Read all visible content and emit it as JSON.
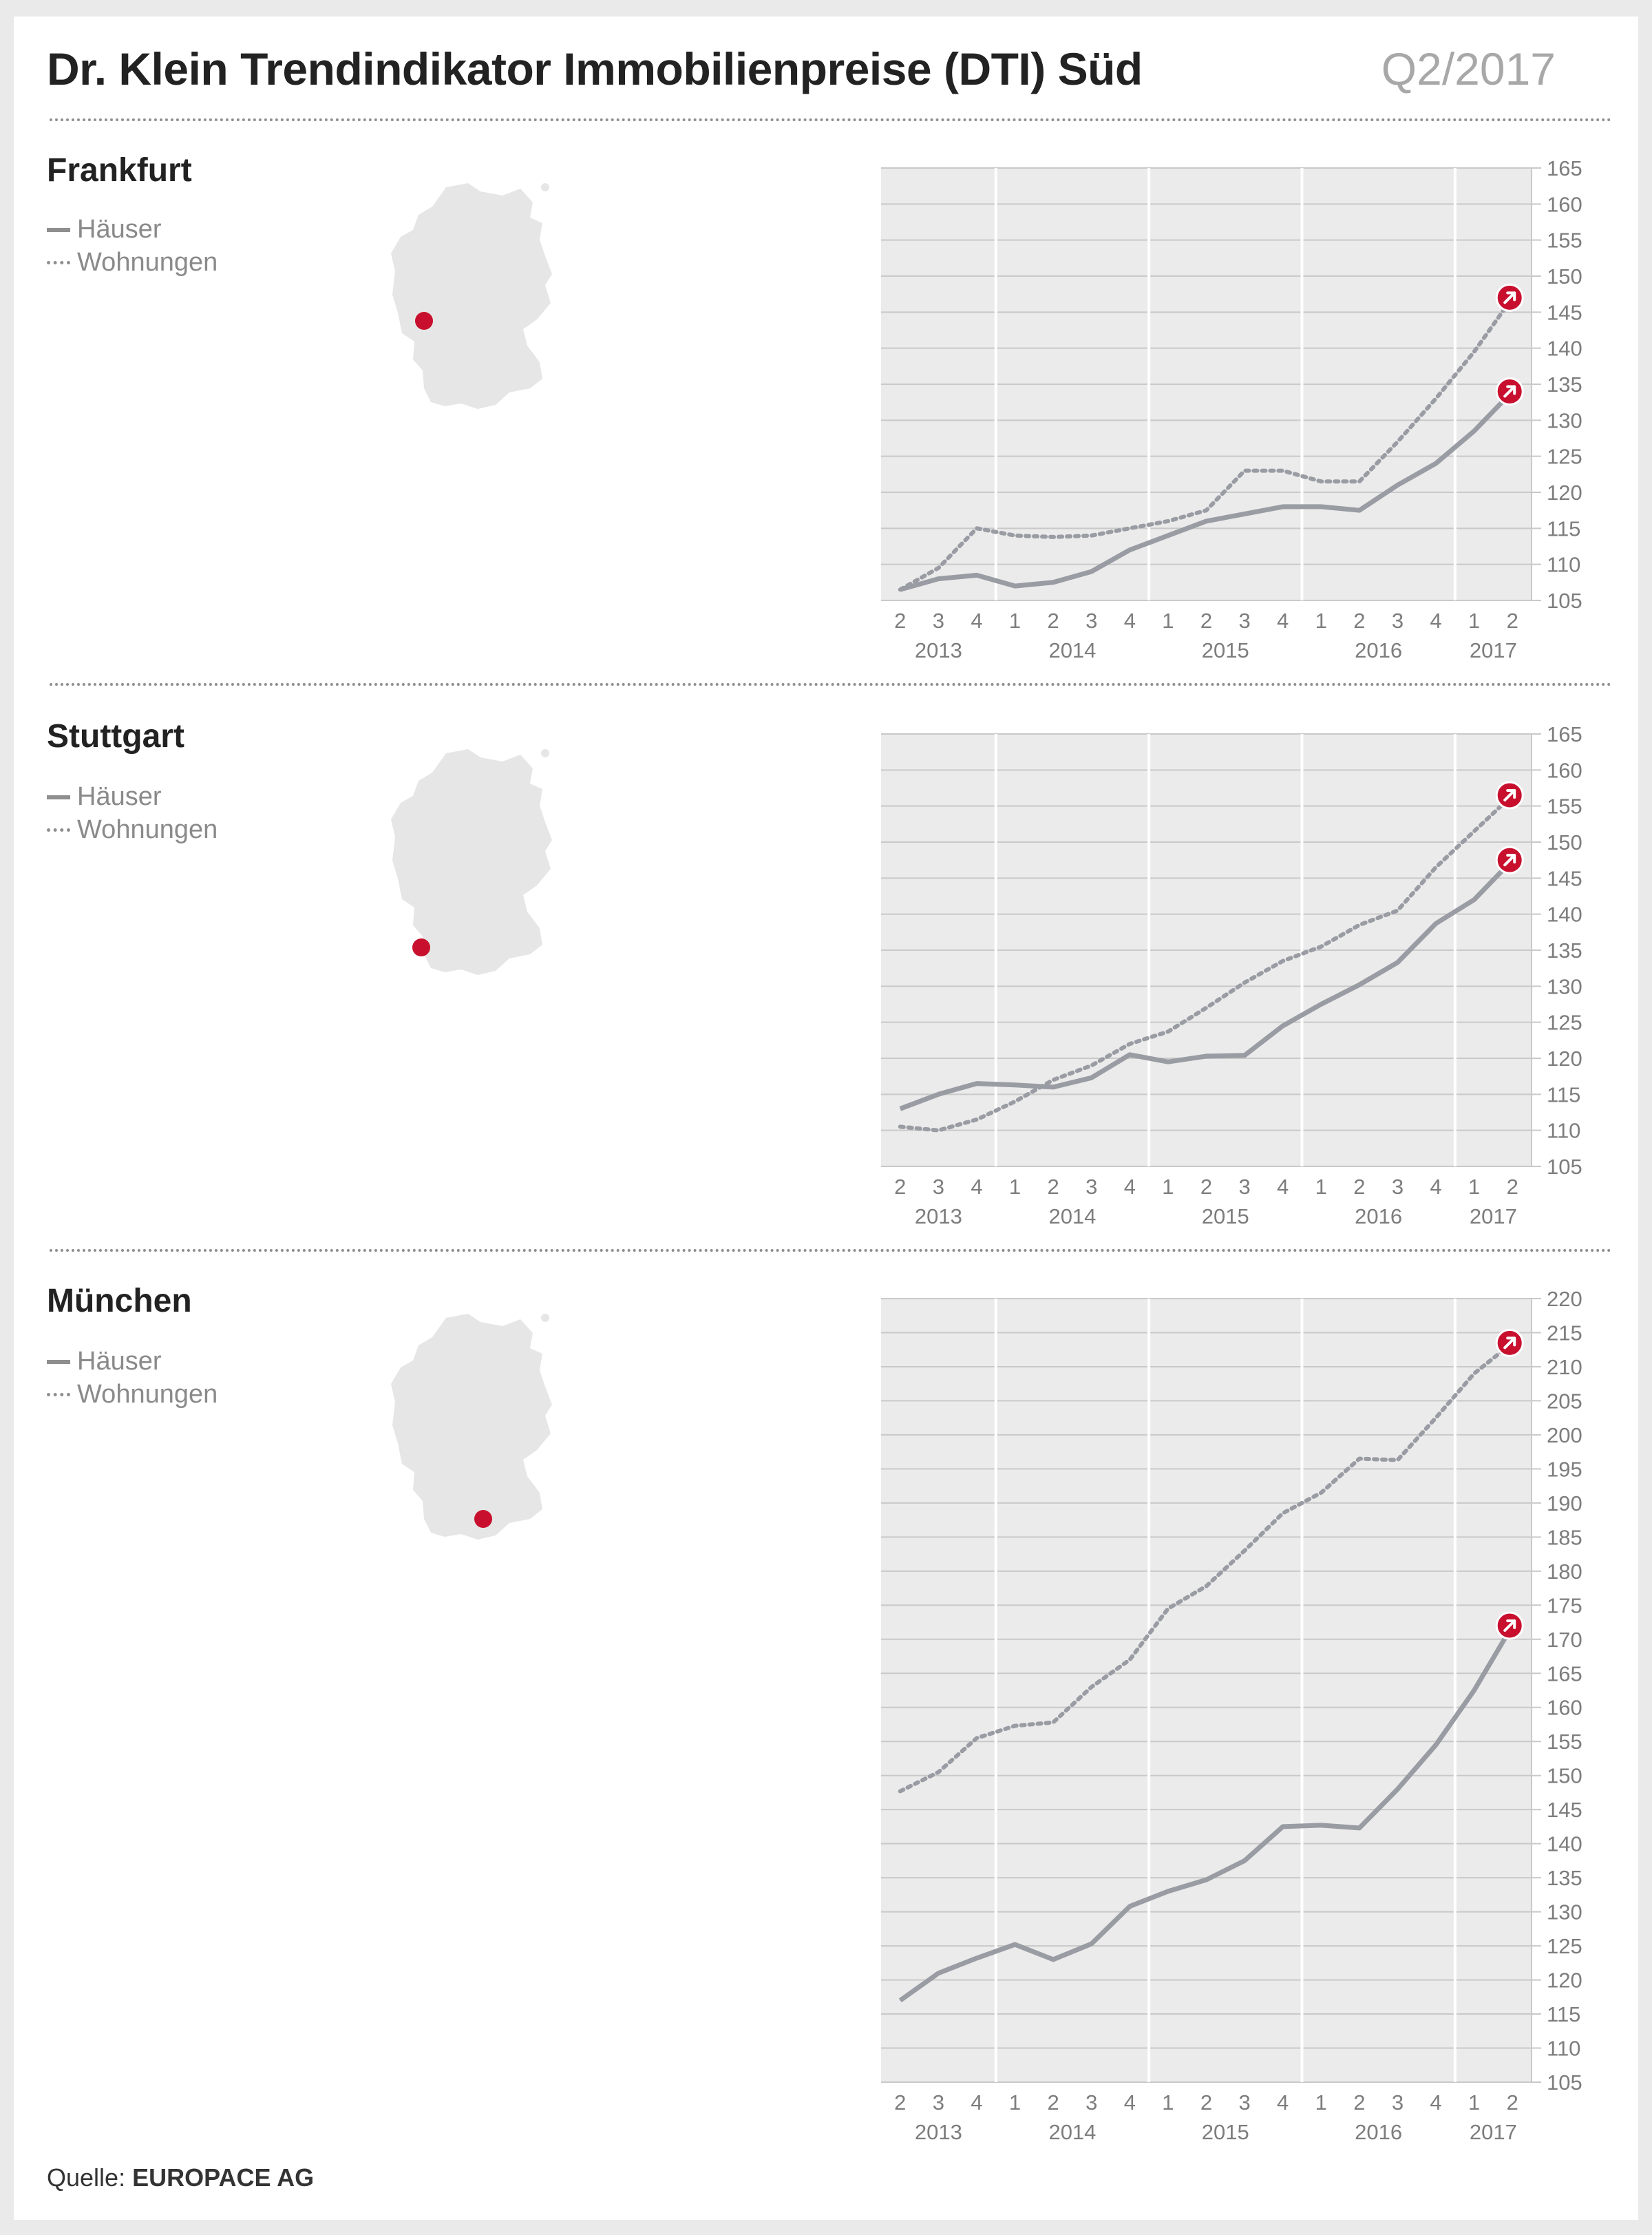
{
  "header": {
    "title": "Dr. Klein Trendindikator Immobilienpreise (DTI) Süd",
    "period": "Q2/2017"
  },
  "legend": {
    "houses": "Häuser",
    "apartments": "Wohnungen"
  },
  "source": {
    "label": "Quelle:",
    "name": "EUROPACE AG"
  },
  "colors": {
    "line": "#9a9ca4",
    "plot_bg": "#ebebeb",
    "marker": "#c8102e",
    "grid": "#ffffff"
  },
  "icons": {
    "map": "germany-map-icon",
    "arrow": "arrow-up-right-icon"
  },
  "chart_data": [
    {
      "type": "line",
      "title": "Frankfurt",
      "quarters": [
        "2",
        "3",
        "4",
        "1",
        "2",
        "3",
        "4",
        "1",
        "2",
        "3",
        "4",
        "1",
        "2",
        "3",
        "4",
        "1",
        "2"
      ],
      "years": [
        {
          "label": "2013",
          "from": 0,
          "to": 2
        },
        {
          "label": "2014",
          "from": 3,
          "to": 6
        },
        {
          "label": "2015",
          "from": 7,
          "to": 10
        },
        {
          "label": "2016",
          "from": 11,
          "to": 14
        },
        {
          "label": "2017",
          "from": 15,
          "to": 16
        }
      ],
      "ylim": [
        105,
        165
      ],
      "ytick_step": 5,
      "grid": true,
      "series": [
        {
          "name": "Häuser",
          "style": "solid",
          "values": [
            106.5,
            108,
            108.5,
            107,
            107.5,
            109,
            112,
            114,
            116,
            117,
            118,
            118,
            117.5,
            121,
            124,
            128.5,
            134
          ]
        },
        {
          "name": "Wohnungen",
          "style": "dotted",
          "values": [
            106.5,
            109.5,
            115,
            114,
            113.8,
            114,
            115,
            116,
            117.5,
            123,
            123,
            121.5,
            121.5,
            127,
            133,
            139.5,
            147
          ]
        }
      ]
    },
    {
      "type": "line",
      "title": "Stuttgart",
      "quarters": [
        "2",
        "3",
        "4",
        "1",
        "2",
        "3",
        "4",
        "1",
        "2",
        "3",
        "4",
        "1",
        "2",
        "3",
        "4",
        "1",
        "2"
      ],
      "years": [
        {
          "label": "2013",
          "from": 0,
          "to": 2
        },
        {
          "label": "2014",
          "from": 3,
          "to": 6
        },
        {
          "label": "2015",
          "from": 7,
          "to": 10
        },
        {
          "label": "2016",
          "from": 11,
          "to": 14
        },
        {
          "label": "2017",
          "from": 15,
          "to": 16
        }
      ],
      "ylim": [
        105,
        165
      ],
      "ytick_step": 5,
      "grid": true,
      "series": [
        {
          "name": "Häuser",
          "style": "solid",
          "values": [
            113,
            115,
            116.5,
            116.3,
            116,
            117.3,
            120.5,
            119.5,
            120.3,
            120.4,
            124.5,
            127.5,
            130.2,
            133.3,
            138.7,
            142,
            147.5
          ]
        },
        {
          "name": "Wohnungen",
          "style": "dotted",
          "values": [
            110.5,
            110,
            111.5,
            114,
            117,
            119,
            122,
            123.7,
            127,
            130.5,
            133.5,
            135.5,
            138.5,
            140.5,
            146.5,
            151.5,
            156.5
          ]
        }
      ]
    },
    {
      "type": "line",
      "title": "München",
      "quarters": [
        "2",
        "3",
        "4",
        "1",
        "2",
        "3",
        "4",
        "1",
        "2",
        "3",
        "4",
        "1",
        "2",
        "3",
        "4",
        "1",
        "2"
      ],
      "years": [
        {
          "label": "2013",
          "from": 0,
          "to": 2
        },
        {
          "label": "2014",
          "from": 3,
          "to": 6
        },
        {
          "label": "2015",
          "from": 7,
          "to": 10
        },
        {
          "label": "2016",
          "from": 11,
          "to": 14
        },
        {
          "label": "2017",
          "from": 15,
          "to": 16
        }
      ],
      "ylim": [
        105,
        220
      ],
      "ytick_step": 5,
      "grid": true,
      "series": [
        {
          "name": "Häuser",
          "style": "solid",
          "values": [
            117,
            121,
            123.2,
            125.2,
            123,
            125.3,
            130.8,
            133,
            134.7,
            137.5,
            142.5,
            142.7,
            142.3,
            148,
            154.5,
            162.5,
            172
          ]
        },
        {
          "name": "Wohnungen",
          "style": "dotted",
          "values": [
            147.7,
            150.5,
            155.5,
            157.3,
            157.8,
            163,
            167,
            174.5,
            177.8,
            183,
            188.5,
            191.5,
            196.5,
            196.3,
            202.5,
            209,
            213.5
          ]
        }
      ]
    }
  ]
}
